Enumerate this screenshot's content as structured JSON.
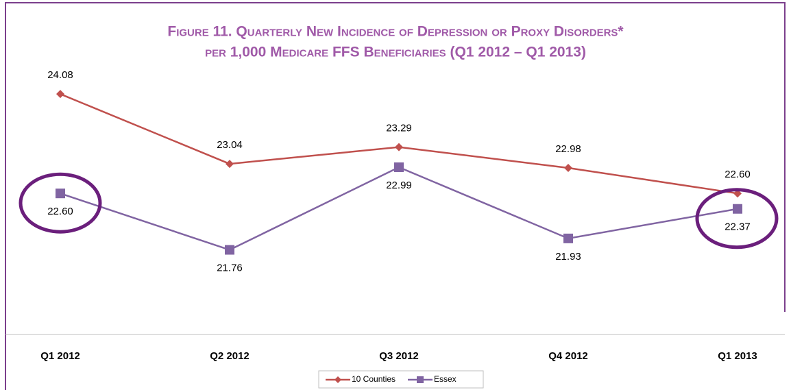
{
  "chart_data": {
    "type": "line",
    "title": [
      "Figure 11. Quarterly New Incidence of Depression or Proxy Disorders*",
      "per 1,000 Medicare FFS Beneficiaries (Q1 2012 – Q1 2013)"
    ],
    "categories": [
      "Q1 2012",
      "Q2 2012",
      "Q3 2012",
      "Q4 2012",
      "Q1 2013"
    ],
    "series": [
      {
        "name": "10 Counties",
        "color": "#c0504d",
        "marker": "diamond",
        "values": [
          24.08,
          23.04,
          23.29,
          22.98,
          22.6
        ],
        "value_labels": [
          "24.08",
          "23.04",
          "23.29",
          "22.98",
          "22.60"
        ]
      },
      {
        "name": "Essex",
        "color": "#8064a2",
        "marker": "square",
        "values": [
          22.6,
          21.76,
          22.99,
          21.93,
          22.37
        ],
        "value_labels": [
          "22.60",
          "21.76",
          "22.99",
          "21.93",
          "22.37"
        ]
      }
    ],
    "ylim": [
      20.5,
      24.5
    ],
    "legend": "bottom"
  }
}
